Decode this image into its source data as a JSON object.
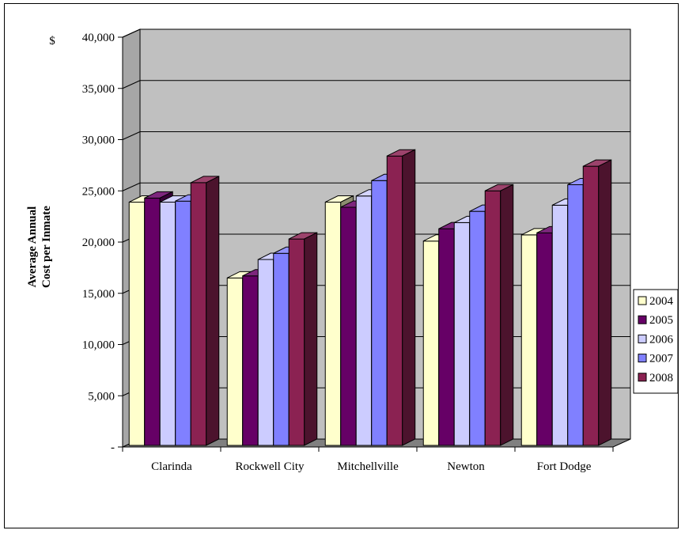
{
  "chart_data": {
    "type": "bar",
    "subtype": "3d-clustered-column",
    "title": "",
    "ylabel_lines": [
      "Average Annual",
      "Cost per Inmate"
    ],
    "currency_symbol": "$",
    "ylim": [
      0,
      40000
    ],
    "y_tick_labels": [
      "-",
      "5,000",
      "10,000",
      "15,000",
      "20,000",
      "25,000",
      "30,000",
      "35,000",
      "40,000"
    ],
    "categories": [
      "Clarinda",
      "Rockwell City",
      "Mitchellville",
      "Newton",
      "Fort Dodge"
    ],
    "series": [
      {
        "name": "2004",
        "color": "#FFFFCC",
        "values": [
          23900,
          16500,
          23900,
          20100,
          20700
        ]
      },
      {
        "name": "2005",
        "color": "#660066",
        "values": [
          24300,
          16700,
          23400,
          21300,
          20900
        ]
      },
      {
        "name": "2006",
        "color": "#CCCCFF",
        "values": [
          23900,
          18300,
          24500,
          21900,
          23600
        ]
      },
      {
        "name": "2007",
        "color": "#8080FF",
        "values": [
          24000,
          18900,
          26000,
          23000,
          25600
        ]
      },
      {
        "name": "2008",
        "color": "#8B2252",
        "values": [
          25800,
          20300,
          28400,
          25000,
          27400
        ]
      }
    ],
    "grid": true,
    "legend": "right",
    "wall_color": "#C0C0C0"
  }
}
